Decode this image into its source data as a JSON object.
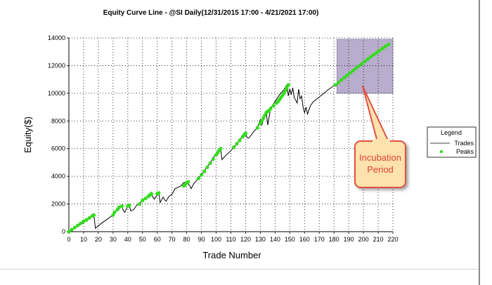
{
  "colors": {
    "trades_line": "#000000",
    "peaks": "#33dd1c",
    "incubation_fill": "#b8adcc",
    "callout_fill": "#fde2ad",
    "callout_stroke": "#e05040",
    "callout_text": "#e0443a",
    "grid": "#000000"
  },
  "chart_data": {
    "type": "line",
    "title": "Equity Curve Line - @SI Daily(12/31/2015 17:00 - 4/21/2021 17:00)",
    "xlabel": "Trade Number",
    "ylabel": "Equity($)",
    "xlim": [
      0,
      220
    ],
    "ylim": [
      0,
      14000
    ],
    "xticks": [
      0,
      10,
      20,
      30,
      40,
      50,
      60,
      70,
      80,
      90,
      100,
      110,
      120,
      130,
      140,
      150,
      160,
      170,
      180,
      190,
      200,
      210,
      220
    ],
    "yticks": [
      0,
      2000,
      4000,
      6000,
      8000,
      10000,
      12000,
      14000
    ],
    "grid": true,
    "legend": {
      "title": "Legend",
      "placement": "right",
      "entries": [
        "Trades",
        "Peaks"
      ]
    },
    "series": [
      {
        "name": "Trades",
        "style": "line",
        "x": [
          0,
          5,
          10,
          16,
          17,
          18,
          22,
          26,
          30,
          32,
          34,
          36,
          37,
          38,
          40,
          41,
          42,
          44,
          46,
          48,
          50,
          52,
          54,
          56,
          57,
          58,
          60,
          61,
          62,
          64,
          65,
          66,
          68,
          70,
          72,
          74,
          76,
          78,
          80,
          82,
          83,
          85,
          88,
          92,
          96,
          100,
          102,
          103,
          104,
          106,
          110,
          114,
          118,
          120,
          121,
          122,
          124,
          126,
          128,
          130,
          131,
          133,
          134,
          135,
          137,
          140,
          143,
          146,
          148,
          149,
          150,
          151,
          152,
          153,
          154,
          155,
          156,
          157,
          158,
          159,
          160,
          161,
          162,
          164,
          166,
          168,
          172,
          176,
          180,
          181
        ],
        "y": [
          0,
          350,
          650,
          1150,
          1200,
          250,
          600,
          900,
          1200,
          1500,
          1750,
          1850,
          1500,
          1400,
          1850,
          1900,
          1500,
          1600,
          1900,
          2000,
          2300,
          2400,
          2600,
          2750,
          2500,
          2350,
          2650,
          2800,
          2100,
          2500,
          2300,
          2200,
          2550,
          2700,
          3100,
          3200,
          3300,
          3550,
          3550,
          3350,
          3100,
          3500,
          3850,
          4400,
          5000,
          5650,
          5900,
          6000,
          5200,
          5450,
          5850,
          6350,
          6900,
          7100,
          6800,
          6750,
          7000,
          7300,
          7500,
          8100,
          7700,
          8400,
          8700,
          7700,
          8900,
          9400,
          9900,
          10250,
          10600,
          9800,
          10300,
          9900,
          10400,
          9700,
          9500,
          9300,
          10300,
          9600,
          9800,
          9000,
          8600,
          9000,
          8500,
          9100,
          9400,
          9550,
          9900,
          10250,
          10550,
          10600
        ]
      },
      {
        "name": "Peaks",
        "style": "points",
        "x": [
          0,
          2,
          4,
          6,
          8,
          10,
          12,
          14,
          16,
          17,
          30,
          31,
          33,
          34,
          36,
          40,
          41,
          48,
          50,
          52,
          54,
          55,
          56,
          60,
          61,
          78,
          79,
          80,
          81,
          88,
          90,
          92,
          94,
          96,
          98,
          100,
          101,
          102,
          103,
          112,
          114,
          116,
          118,
          119,
          120,
          128,
          130,
          131,
          132,
          133,
          134,
          135,
          136,
          137,
          139,
          141,
          142,
          143,
          144,
          145,
          146,
          147,
          148,
          149,
          181,
          183,
          185,
          187,
          189,
          191,
          193,
          195,
          197,
          199,
          201,
          203,
          205,
          207,
          209,
          211,
          213,
          215,
          217
        ],
        "y": [
          0,
          150,
          300,
          450,
          600,
          750,
          850,
          1000,
          1150,
          1200,
          1200,
          1400,
          1600,
          1750,
          1850,
          1850,
          1900,
          2000,
          2250,
          2400,
          2550,
          2650,
          2750,
          2750,
          2800,
          3300,
          3400,
          3550,
          3600,
          3850,
          4100,
          4350,
          4650,
          4950,
          5250,
          5550,
          5700,
          5850,
          6000,
          6100,
          6350,
          6600,
          6850,
          7000,
          7100,
          7500,
          7800,
          8000,
          8200,
          8400,
          8600,
          8700,
          8750,
          8900,
          9100,
          9300,
          9400,
          9550,
          9700,
          9850,
          10000,
          10200,
          10400,
          10600,
          10600,
          10780,
          10960,
          11130,
          11300,
          11470,
          11640,
          11810,
          11980,
          12140,
          12300,
          12470,
          12630,
          12790,
          12940,
          13090,
          13240,
          13390,
          13530
        ]
      }
    ],
    "annotations": [
      {
        "type": "shaded_region",
        "x": [
          182,
          220
        ],
        "y": [
          10000,
          13900
        ]
      },
      {
        "type": "callout",
        "lines": [
          "Incubation",
          "Period"
        ],
        "points_to": {
          "x": 200,
          "y": 10500
        }
      }
    ]
  }
}
